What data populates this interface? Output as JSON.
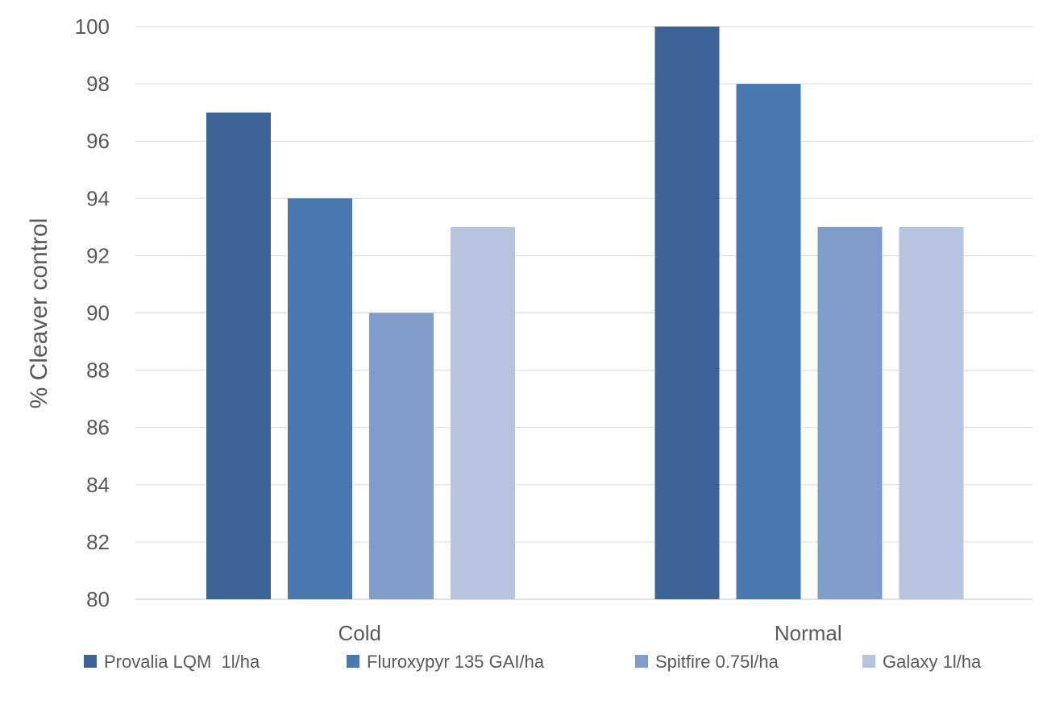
{
  "chart_data": {
    "type": "bar",
    "title": "",
    "xlabel": "",
    "ylabel": "% Cleaver control",
    "categories": [
      "Cold",
      "Normal"
    ],
    "series": [
      {
        "name": "Provalia LQM  1l/ha",
        "values": [
          97,
          100
        ],
        "color": "#3c6496"
      },
      {
        "name": "Fluroxypyr 135 GAI/ha",
        "values": [
          94,
          98
        ],
        "color": "#4a78b0"
      },
      {
        "name": "Spitfire 0.75l/ha",
        "values": [
          90,
          93
        ],
        "color": "#7f9dc8"
      },
      {
        "name": "Galaxy 1l/ha",
        "values": [
          93,
          93
        ],
        "color": "#b6c4df"
      }
    ],
    "ylim": [
      80,
      100
    ],
    "yticks": [
      80,
      82,
      84,
      86,
      88,
      90,
      92,
      94,
      96,
      98,
      100
    ],
    "grid": true,
    "legend_position": "bottom"
  }
}
